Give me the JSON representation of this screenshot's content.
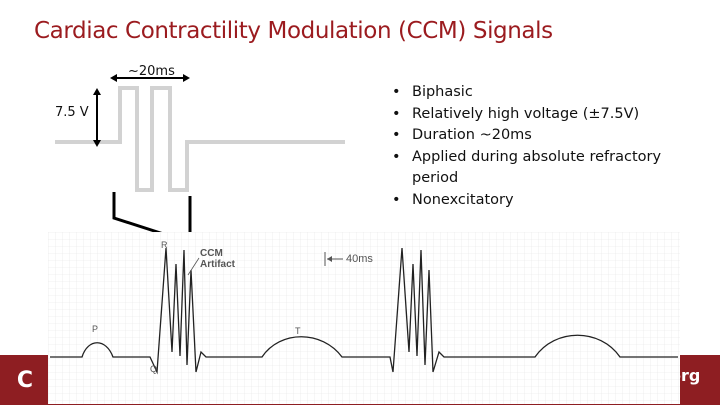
{
  "title": "Cardiac Contractility Modulation (CCM) Signals",
  "pulse": {
    "width_label": "~20ms",
    "voltage_label": "7.5 V"
  },
  "bullets": [
    "Biphasic",
    "Relatively high voltage (±7.5V)",
    "Duration ~20ms",
    "Applied during absolute refractory period",
    "Nonexcitatory"
  ],
  "ecg": {
    "r_label": "R",
    "p_label": "P",
    "q_label": "Q",
    "t_label": "T",
    "ccm_label_line1": "CCM",
    "ccm_label_line2": "Artifact",
    "scale_label": "40ms"
  },
  "footer": {
    "logo_left": "C",
    "logo_right": "org"
  },
  "colors": {
    "title": "#9b1b1f",
    "footer": "#8e1e22",
    "pulse": "#d2d2d2"
  }
}
